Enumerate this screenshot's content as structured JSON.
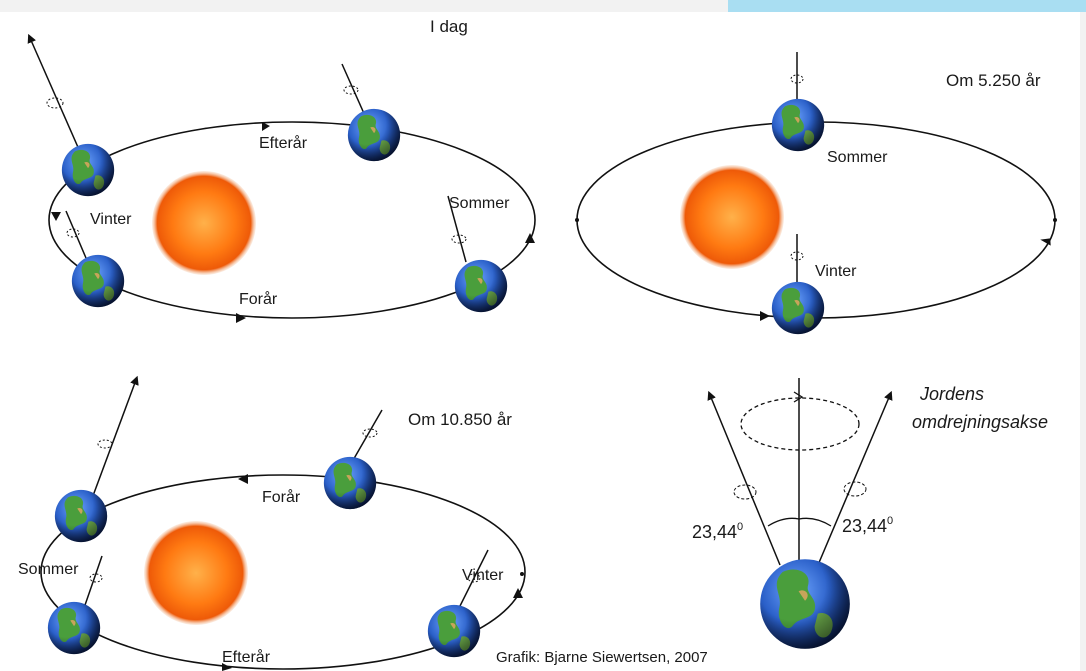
{
  "panels": {
    "today": {
      "title": "I dag",
      "labels": {
        "autumn": "Efterår",
        "winter": "Vinter",
        "summer": "Sommer",
        "spring": "Forår"
      }
    },
    "in_5250": {
      "title": "Om 5.250 år",
      "labels": {
        "summer": "Sommer",
        "winter": "Vinter"
      }
    },
    "in_10850": {
      "title": "Om 10.850 år",
      "labels": {
        "spring": "Forår",
        "summer": "Sommer",
        "winter": "Vinter",
        "autumn": "Efterår"
      }
    },
    "axis": {
      "title_line1": "Jordens",
      "title_line2": "omdrejningsakse",
      "angle_left": "23,44",
      "angle_right": "23,44",
      "degree_mark": "0"
    }
  },
  "credit": "Grafik: Bjarne Siewertsen, 2007",
  "colors": {
    "sun_core": "#ff8a1c",
    "sun_edge": "#e34d05",
    "ocean": "#2e63c9",
    "land": "#3f9a3a",
    "accent_bar": "#a9def2"
  }
}
